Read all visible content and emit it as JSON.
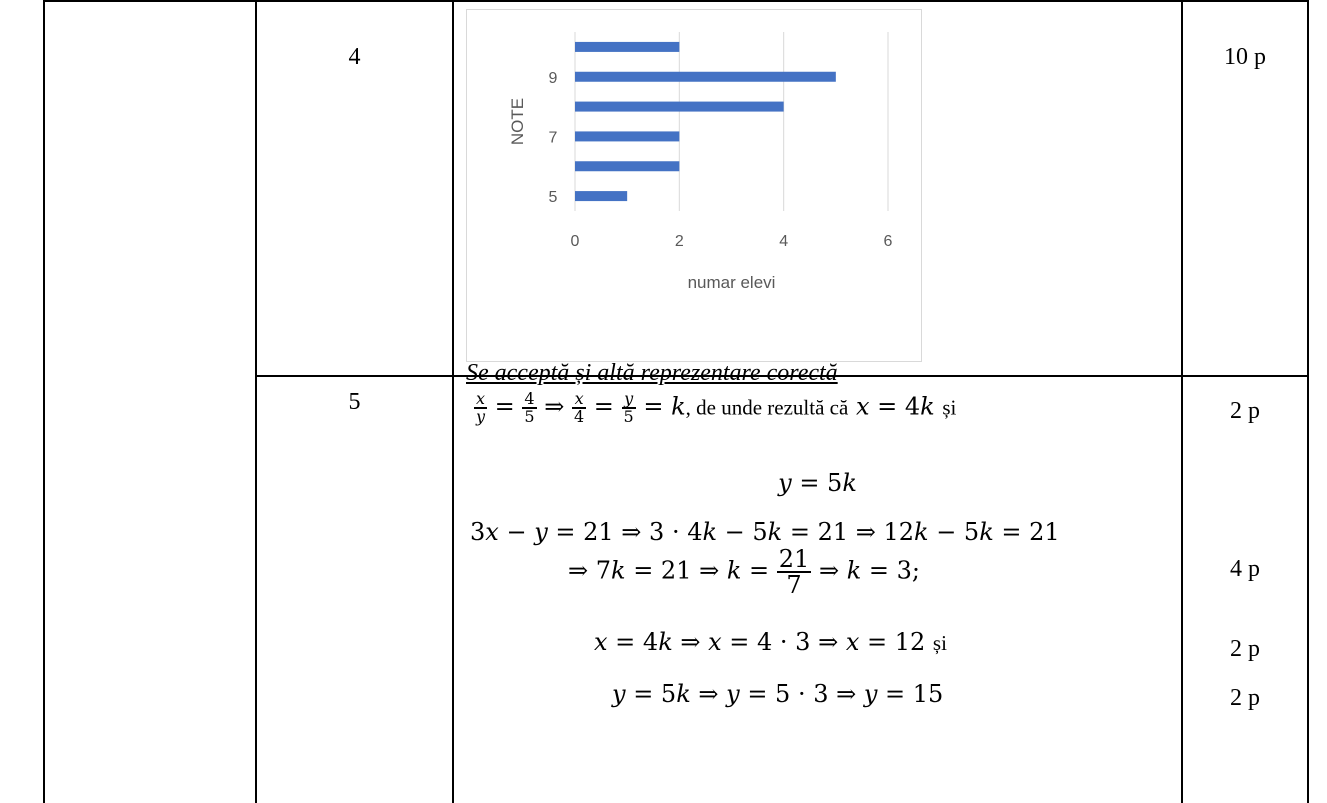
{
  "rows": [
    {
      "num": "4",
      "points": "10 p",
      "caption": "Se acceptă și altă reprezentare corectă"
    },
    {
      "num": "5",
      "points": [
        "2 p",
        "4 p",
        "2 p",
        "2 p"
      ],
      "text": {
        "unde": ", de unde rezultă că",
        "si": "și"
      }
    }
  ],
  "chart_data": {
    "type": "bar",
    "orientation": "horizontal",
    "categories": [
      "5",
      "6",
      "7",
      "8",
      "9",
      "10"
    ],
    "tick_labels_y": [
      "5",
      "7",
      "9"
    ],
    "values": [
      1,
      2,
      2,
      4,
      5,
      2
    ],
    "xlabel": "numar elevi",
    "ylabel": "NOTE",
    "xlim": [
      0,
      6
    ],
    "xticks": [
      "0",
      "2",
      "4",
      "6"
    ],
    "grid": true,
    "bar_color": "#4472c4"
  }
}
